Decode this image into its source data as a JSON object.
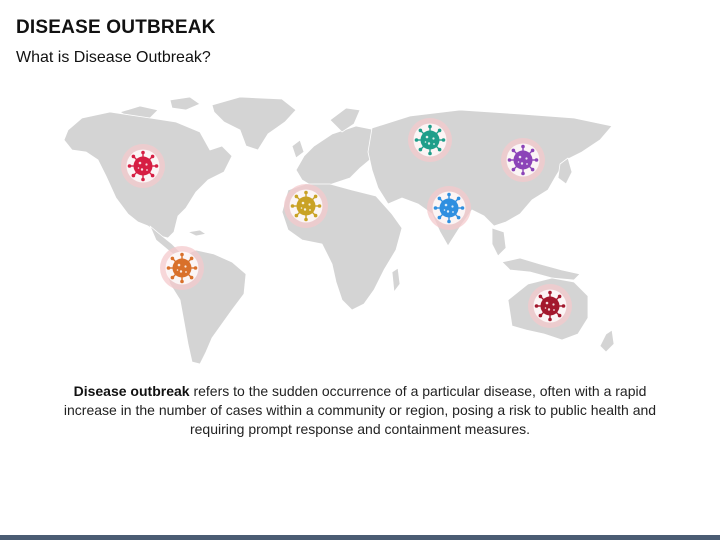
{
  "header": {
    "title": "DISEASE OUTBREAK",
    "subtitle": "What is Disease Outbreak?"
  },
  "description": {
    "term": "Disease outbreak",
    "text": " refers to the sudden occurrence of a particular disease, often with a rapid increase in the number of cases within a community or region, posing a risk to public health and requiring prompt response and containment measures."
  },
  "colors": {
    "map_land": "#d4d4d4",
    "map_outline": "#ffffff",
    "marker_halo": "#f4c9cc",
    "bottom_bar": "#4a5c73"
  },
  "markers": [
    {
      "region": "north-america",
      "icon": "virus-icon",
      "color": "#d61f43"
    },
    {
      "region": "south-america",
      "icon": "virus-icon",
      "color": "#d9702a"
    },
    {
      "region": "west-africa",
      "icon": "virus-icon",
      "color": "#c9a225"
    },
    {
      "region": "russia",
      "icon": "virus-icon",
      "color": "#1e9e8a"
    },
    {
      "region": "india",
      "icon": "virus-icon",
      "color": "#2f8fe0"
    },
    {
      "region": "east-asia",
      "icon": "virus-icon",
      "color": "#8c44b8"
    },
    {
      "region": "australia",
      "icon": "virus-icon",
      "color": "#a3182d"
    }
  ]
}
